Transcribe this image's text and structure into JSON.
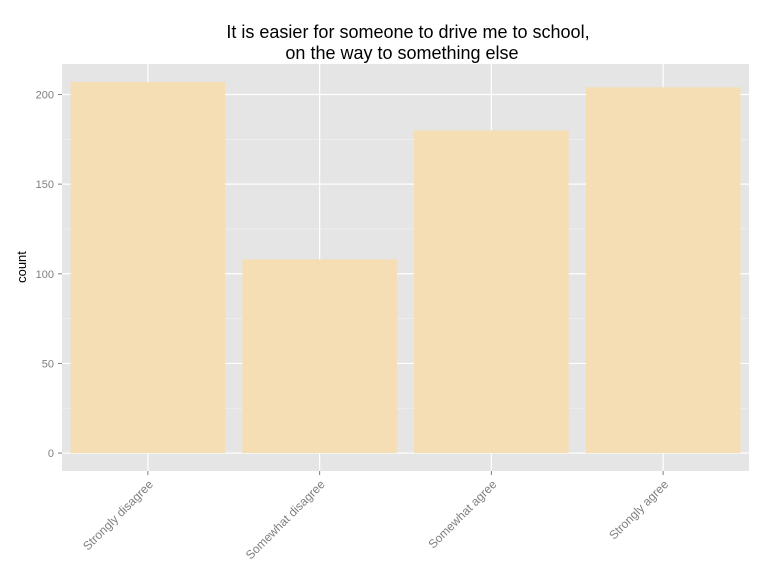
{
  "chart_data": {
    "type": "bar",
    "title": [
      "It is easier for someone to drive me to school,",
      "on the way to something else"
    ],
    "xlabel": "",
    "ylabel": "count",
    "categories": [
      "Strongly disagree",
      "Somewhat disagree",
      "Somewhat agree",
      "Strongly agree"
    ],
    "values": [
      207,
      108,
      180,
      204
    ],
    "ylim": [
      -10,
      217
    ],
    "yticks": [
      0,
      50,
      100,
      150,
      200
    ],
    "grid": true,
    "colors": {
      "bar": "#f5deb3",
      "panel": "#e5e5e5",
      "grid_major": "#ffffff",
      "grid_minor": "#f2f2f2",
      "tick_text": "#7f7f7f"
    }
  }
}
